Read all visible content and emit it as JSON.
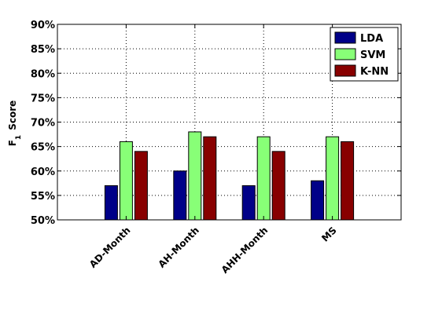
{
  "chart_data": {
    "type": "bar",
    "categories": [
      "AD-Month",
      "AH-Month",
      "AHH-Month",
      "MS"
    ],
    "series": [
      {
        "name": "LDA",
        "values": [
          57,
          60,
          57,
          58
        ],
        "color": "#000088"
      },
      {
        "name": "SVM",
        "values": [
          66,
          68,
          67,
          67
        ],
        "color": "#88ff77"
      },
      {
        "name": "K-NN",
        "values": [
          64,
          67,
          64,
          66
        ],
        "color": "#880000"
      }
    ],
    "ylabel_main": "F",
    "ylabel_sub": "1",
    "ylabel_rest": "Score",
    "ylim": [
      50,
      90
    ],
    "yticks": [
      50,
      55,
      60,
      65,
      70,
      75,
      80,
      85,
      90
    ],
    "ytick_suffix": "%",
    "grid": true,
    "legend_position": "top-right"
  }
}
